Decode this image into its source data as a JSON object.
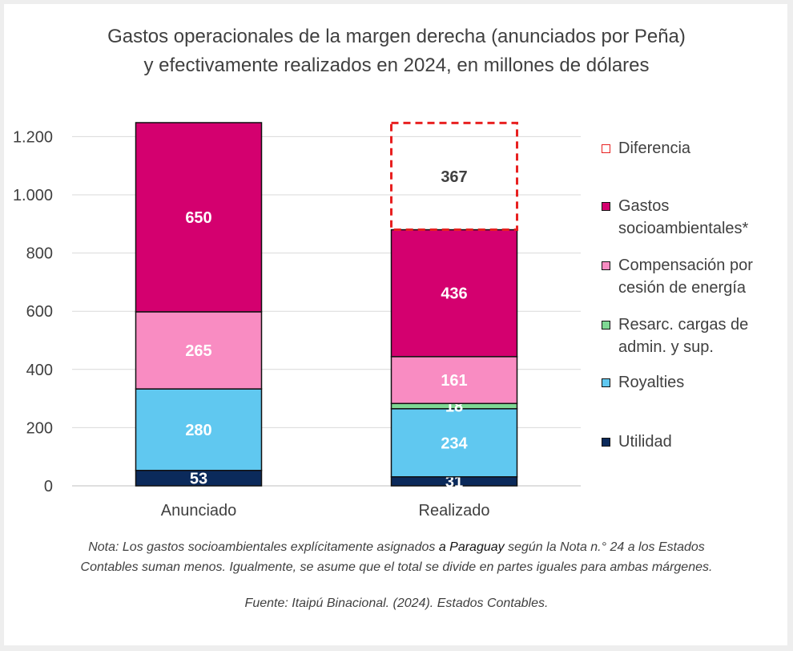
{
  "title_line1": "Gastos operacionales de la margen derecha (anunciados por Peña)",
  "title_line2": "y efectivamente realizados en 2024, en millones de dólares",
  "note_part1": "Nota: Los gastos socioambientales explícitamente asignados ",
  "note_em": "a Paraguay",
  "note_part2": " según la Nota n.° 24 a los Estados",
  "note_line2": "Contables suman menos. Igualmente, se asume que el total se divide en partes iguales para ambas márgenes.",
  "source": "Fuente: Itaipú Binacional. (2024). Estados Contables.",
  "chart_data": {
    "type": "bar",
    "stacked": true,
    "categories": [
      "Anunciado",
      "Realizado"
    ],
    "ylim": [
      0,
      1300
    ],
    "yticks": [
      0,
      200,
      400,
      600,
      800,
      1000,
      1200
    ],
    "ytick_labels": [
      "0",
      "200",
      "400",
      "600",
      "800",
      "1.000",
      "1.200"
    ],
    "series": [
      {
        "name": "Utilidad",
        "values": [
          53,
          31
        ],
        "color": "#0b2a5b"
      },
      {
        "name": "Royalties",
        "values": [
          280,
          234
        ],
        "color": "#60c8f0"
      },
      {
        "name": "Resarc. cargas de admin. y sup.",
        "values": [
          0,
          18
        ],
        "color": "#7fd894"
      },
      {
        "name": "Compensación por cesión de energía",
        "values": [
          265,
          161
        ],
        "color": "#f98cc2"
      },
      {
        "name": "Gastos socioambientales*",
        "values": [
          650,
          436
        ],
        "color": "#d4006f"
      },
      {
        "name": "Diferencia",
        "values": [
          0,
          367
        ],
        "color": "#e82020",
        "outline_only": true
      }
    ],
    "legend_position": "right",
    "legend": [
      {
        "lines": [
          "Diferencia"
        ],
        "color": "#e82020",
        "outline": true
      },
      {
        "lines": [
          "Gastos",
          "socioambientales*"
        ],
        "color": "#d4006f"
      },
      {
        "lines": [
          "Compensación por",
          "cesión de energía"
        ],
        "color": "#f98cc2"
      },
      {
        "lines": [
          "Resarc. cargas de",
          "admin. y sup."
        ],
        "color": "#7fd894"
      },
      {
        "lines": [
          "Royalties"
        ],
        "color": "#60c8f0"
      },
      {
        "lines": [
          "Utilidad"
        ],
        "color": "#0b2a5b"
      }
    ],
    "grid": true
  }
}
